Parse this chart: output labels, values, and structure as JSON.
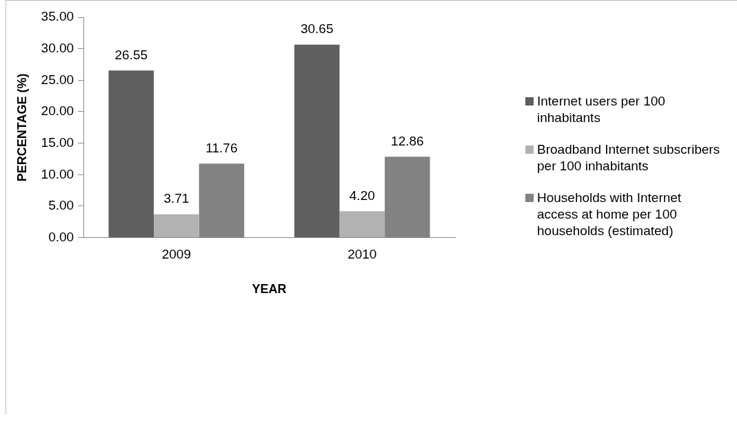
{
  "chart_data": {
    "type": "bar",
    "xlabel": "YEAR",
    "ylabel": "PERCENTAGE (%)",
    "categories": [
      "2009",
      "2010"
    ],
    "series": [
      {
        "name": "Internet users per 100 inhabitants",
        "color": "#5f5f5f",
        "values": [
          26.55,
          30.65
        ],
        "value_labels": [
          "26.55",
          "30.65"
        ]
      },
      {
        "name": "Broadband Internet subscribers per 100 inhabitants",
        "color": "#b2b2b2",
        "values": [
          3.71,
          4.2
        ],
        "value_labels": [
          "3.71",
          "4.20"
        ]
      },
      {
        "name": "Households with Internet access at home per 100 households (estimated)",
        "color": "#828282",
        "values": [
          11.76,
          12.86
        ],
        "value_labels": [
          "11.76",
          "12.86"
        ]
      }
    ],
    "ylim": [
      0,
      35
    ],
    "yticks": [
      {
        "value": 0,
        "label": "0.00"
      },
      {
        "value": 5,
        "label": "5.00"
      },
      {
        "value": 10,
        "label": "10.00"
      },
      {
        "value": 15,
        "label": "15.00"
      },
      {
        "value": 20,
        "label": "20.00"
      },
      {
        "value": 25,
        "label": "25.00"
      },
      {
        "value": 30,
        "label": "30.00"
      },
      {
        "value": 35,
        "label": "35.00"
      }
    ],
    "grid": false,
    "legend": "right"
  }
}
